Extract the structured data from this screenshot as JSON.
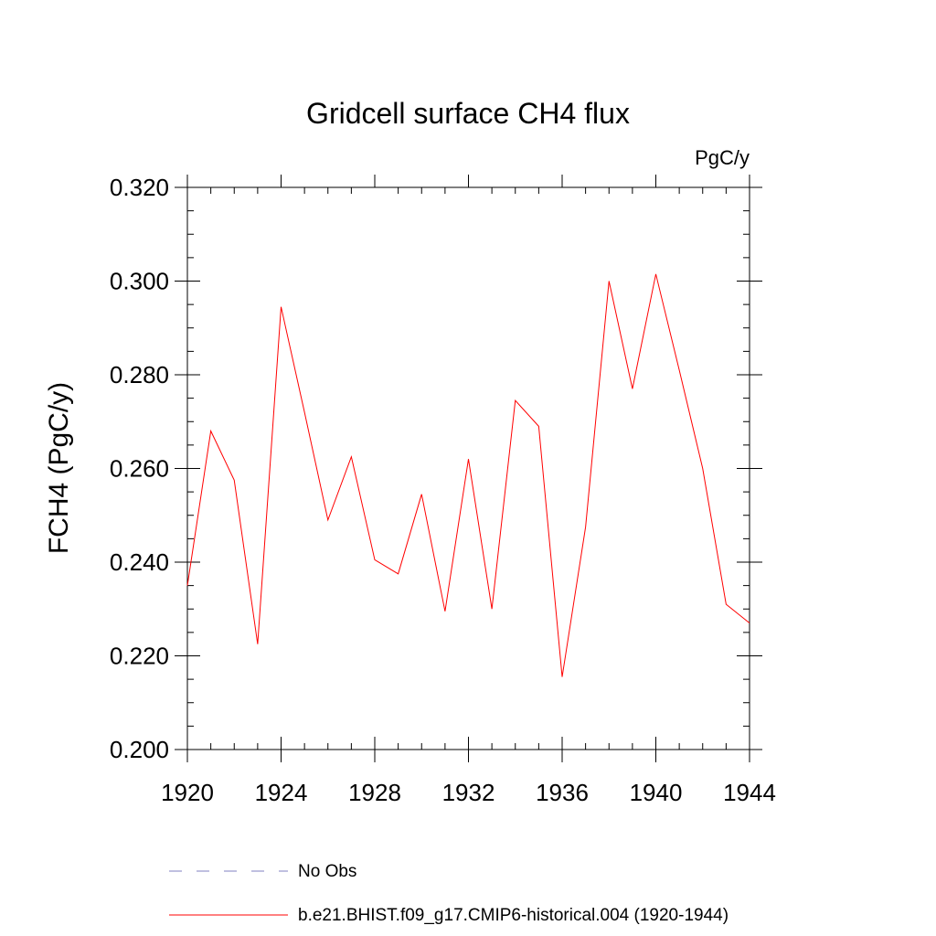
{
  "chart_data": {
    "type": "line",
    "title": "Gridcell surface CH4 flux",
    "units_label": "PgC/y",
    "xlabel": "",
    "ylabel": "FCH4  (PgC/y)",
    "xlim": [
      1920,
      1944
    ],
    "ylim": [
      0.2,
      0.32
    ],
    "x_ticks": [
      1920,
      1924,
      1928,
      1932,
      1936,
      1940,
      1944
    ],
    "x_tick_labels": [
      "1920",
      "1924",
      "1928",
      "1932",
      "1936",
      "1940",
      "1944"
    ],
    "y_ticks": [
      0.2,
      0.22,
      0.24,
      0.26,
      0.28,
      0.3,
      0.32
    ],
    "y_tick_labels": [
      "0.200",
      "0.220",
      "0.240",
      "0.260",
      "0.280",
      "0.300",
      "0.320"
    ],
    "y_minor_step": 0.005,
    "x_minor_step": 1,
    "series": [
      {
        "name": "b.e21.BHIST.f09_g17.CMIP6-historical.004 (1920-1944)",
        "color": "#ff0000",
        "style": "solid",
        "x": [
          1920,
          1921,
          1922,
          1923,
          1924,
          1925,
          1926,
          1927,
          1928,
          1929,
          1930,
          1931,
          1932,
          1933,
          1934,
          1935,
          1936,
          1937,
          1938,
          1939,
          1940,
          1941,
          1942,
          1943,
          1944
        ],
        "values": [
          0.235,
          0.268,
          0.2575,
          0.2225,
          0.2945,
          0.272,
          0.249,
          0.2625,
          0.2405,
          0.2375,
          0.2545,
          0.2295,
          0.262,
          0.23,
          0.2745,
          0.269,
          0.2155,
          0.2475,
          0.3,
          0.277,
          0.3015,
          0.281,
          0.26,
          0.231,
          0.227
        ]
      }
    ],
    "legend": [
      {
        "label": "No Obs",
        "color": "#8080c0",
        "style": "dashed"
      },
      {
        "label": "b.e21.BHIST.f09_g17.CMIP6-historical.004 (1920-1944)",
        "color": "#ff0000",
        "style": "solid"
      }
    ]
  }
}
